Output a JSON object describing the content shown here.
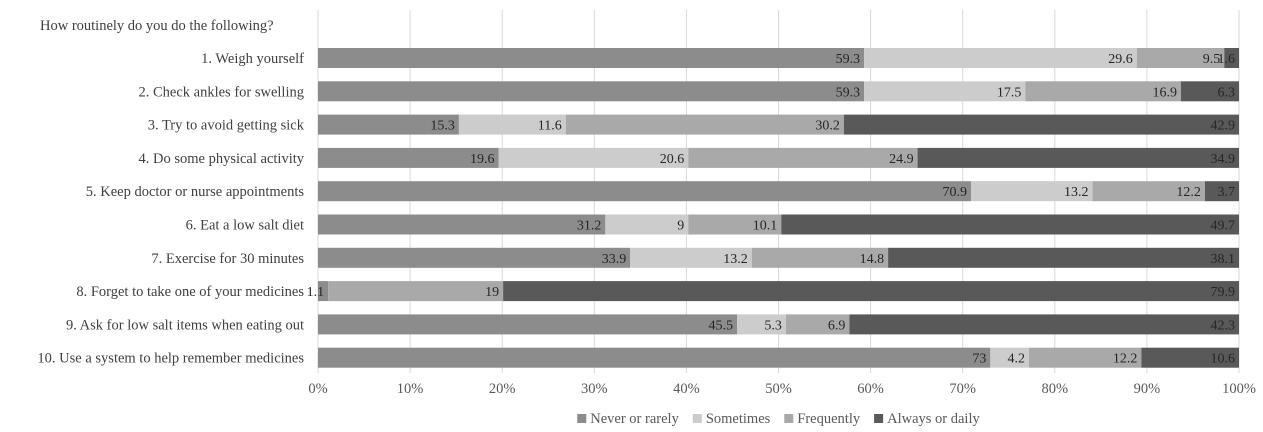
{
  "chart_data": {
    "type": "bar",
    "orientation": "horizontal",
    "stacked": "percent",
    "question": "How routinely do you do the following?",
    "categories": [
      "1. Weigh yourself",
      "2. Check ankles for swelling",
      "3. Try to avoid getting sick",
      "4. Do some physical activity",
      "5. Keep doctor or nurse appointments",
      "6. Eat a low salt diet",
      "7. Exercise for 30 minutes",
      "8. Forget to take one of your medicines",
      "9. Ask for low salt items when eating out",
      "10. Use a system to help remember medicines"
    ],
    "series": [
      {
        "name": "Never or rarely",
        "color": "#8c8c8c",
        "values": [
          59.3,
          59.3,
          15.3,
          19.6,
          70.9,
          31.2,
          33.9,
          1.1,
          45.5,
          73
        ]
      },
      {
        "name": "Sometimes",
        "color": "#cccccc",
        "values": [
          29.6,
          17.5,
          11.6,
          20.6,
          13.2,
          9,
          13.2,
          null,
          5.3,
          4.2
        ]
      },
      {
        "name": "Frequently",
        "color": "#a9a9a9",
        "values": [
          9.5,
          16.9,
          30.2,
          24.9,
          12.2,
          10.1,
          14.8,
          19,
          6.9,
          12.2
        ]
      },
      {
        "name": "Always or daily",
        "color": "#595959",
        "values": [
          1.6,
          6.3,
          42.9,
          34.9,
          3.7,
          49.7,
          38.1,
          79.9,
          42.3,
          10.6
        ]
      }
    ],
    "xlim": [
      0,
      100
    ],
    "xticks": [
      "0%",
      "10%",
      "20%",
      "30%",
      "40%",
      "50%",
      "60%",
      "70%",
      "80%",
      "90%",
      "100%"
    ],
    "grid": true,
    "legend": "bottom"
  }
}
